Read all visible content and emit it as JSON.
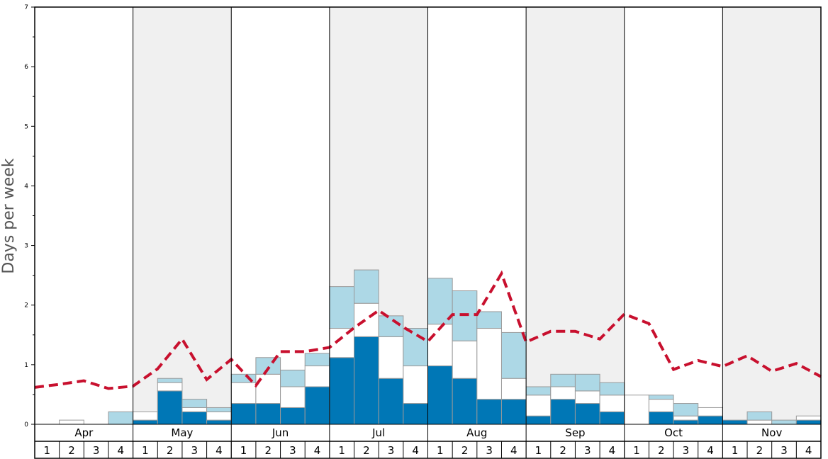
{
  "chart_data": {
    "type": "bar",
    "title": "",
    "xlabel": "",
    "ylabel": "Days per week",
    "ylim": [
      0,
      7
    ],
    "yticks": [
      "0",
      "1",
      "2",
      "3",
      "4",
      "5",
      "6",
      "7"
    ],
    "months": [
      "Apr",
      "May",
      "Jun",
      "Jul",
      "Aug",
      "Sep",
      "Oct",
      "Nov"
    ],
    "week_labels": [
      "1",
      "2",
      "3",
      "4"
    ],
    "shaded_months": [
      "May",
      "Jul",
      "Sep",
      "Nov"
    ],
    "grid": false,
    "series": [
      {
        "color": "#0077b6",
        "values": [
          0.0,
          0.0,
          0.0,
          0.0,
          0.07,
          0.56,
          0.21,
          0.07,
          0.35,
          0.35,
          0.28,
          0.63,
          1.12,
          1.47,
          0.77,
          0.35,
          0.98,
          0.77,
          0.42,
          0.42,
          0.14,
          0.42,
          0.35,
          0.21,
          0.0,
          0.21,
          0.07,
          0.14,
          0.07,
          0.0,
          0.0,
          0.07
        ]
      },
      {
        "color": "#ffffff",
        "values": [
          0.0,
          0.07,
          0.0,
          0.0,
          0.14,
          0.14,
          0.07,
          0.14,
          0.35,
          0.49,
          0.35,
          0.35,
          0.49,
          0.56,
          0.7,
          0.63,
          0.7,
          0.63,
          1.19,
          0.35,
          0.35,
          0.21,
          0.21,
          0.28,
          0.49,
          0.21,
          0.07,
          0.14,
          0.0,
          0.07,
          0.0,
          0.07
        ]
      },
      {
        "color": "#add8e6",
        "values": [
          0.0,
          0.0,
          0.0,
          0.21,
          0.0,
          0.07,
          0.14,
          0.07,
          0.14,
          0.28,
          0.28,
          0.21,
          0.7,
          0.56,
          0.35,
          0.63,
          0.77,
          0.84,
          0.28,
          0.77,
          0.14,
          0.21,
          0.28,
          0.21,
          0.0,
          0.07,
          0.21,
          0.0,
          0.0,
          0.14,
          0.07,
          0.0
        ]
      }
    ],
    "line": {
      "color": "#c8102e",
      "style": "dashed",
      "values": [
        0.62,
        0.67,
        0.73,
        0.6,
        0.64,
        0.93,
        1.43,
        0.75,
        1.09,
        0.65,
        1.22,
        1.22,
        1.29,
        1.62,
        1.91,
        1.63,
        1.39,
        1.84,
        1.84,
        2.53,
        1.38,
        1.56,
        1.56,
        1.43,
        1.85,
        1.69,
        0.92,
        1.07,
        0.97,
        1.15,
        0.89,
        1.02,
        0.8
      ]
    }
  }
}
